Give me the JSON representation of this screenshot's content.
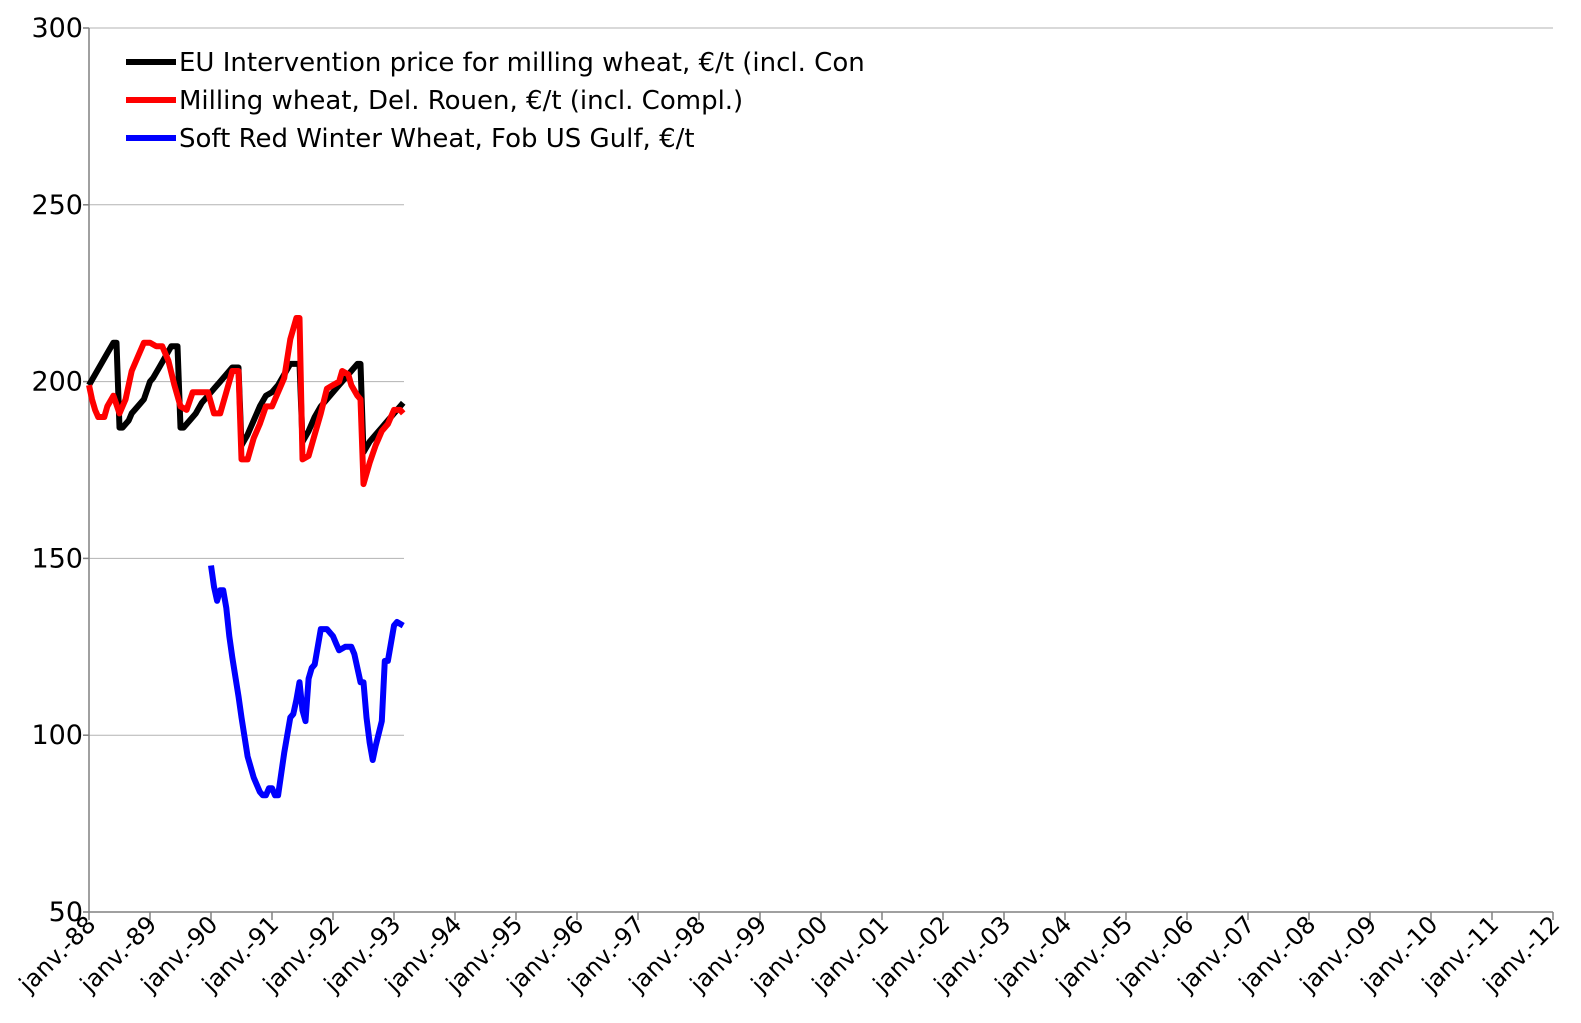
{
  "chart_data": {
    "type": "line",
    "title": "",
    "xlabel": "",
    "ylabel": "",
    "ylim": [
      50,
      300
    ],
    "yticks": [
      50,
      100,
      150,
      200,
      250,
      300
    ],
    "grid": true,
    "legend_placement": "top-left",
    "xtick_labels": [
      "janv.-88",
      "janv.-89",
      "janv.-90",
      "janv.-91",
      "janv.-92",
      "janv.-93",
      "janv.-94",
      "janv.-95",
      "janv.-96",
      "janv.-97",
      "janv.-98",
      "janv.-99",
      "janv.-00",
      "janv.-01",
      "janv.-02",
      "janv.-03",
      "janv.-04",
      "janv.-05",
      "janv.-06",
      "janv.-07",
      "janv.-08",
      "janv.-09",
      "janv.-10",
      "janv.-11",
      "janv.-12"
    ],
    "series": [
      {
        "name": "EU Intervention price for milling wheat, €/t (incl. Con",
        "color": "#000000",
        "x": [
          1988.0,
          1988.1,
          1988.2,
          1988.3,
          1988.4,
          1988.45,
          1988.5,
          1988.55,
          1988.65,
          1988.7,
          1988.8,
          1988.9,
          1989.0,
          1989.05,
          1989.15,
          1989.25,
          1989.35,
          1989.45,
          1989.5,
          1989.55,
          1989.65,
          1989.75,
          1989.85,
          1989.95,
          1990.05,
          1990.15,
          1990.25,
          1990.35,
          1990.45,
          1990.5,
          1990.6,
          1990.7,
          1990.8,
          1990.9,
          1991.0,
          1991.1,
          1991.2,
          1991.3,
          1991.45,
          1991.5,
          1991.6,
          1991.7,
          1991.8,
          1991.9,
          1992.0,
          1992.1,
          1992.2,
          1992.3,
          1992.4,
          1992.45,
          1992.5,
          1992.6,
          1992.7,
          1992.8,
          1992.9,
          1993.0,
          1993.15
        ],
        "y": [
          199,
          202,
          205,
          208,
          211,
          211,
          187,
          187,
          189,
          191,
          193,
          195,
          200,
          201,
          204,
          207,
          210,
          210,
          187,
          187,
          189,
          191,
          194,
          196,
          198,
          200,
          202,
          204,
          204,
          182,
          185,
          189,
          193,
          196,
          197,
          199,
          202,
          205,
          205,
          183,
          186,
          190,
          193,
          195,
          197,
          199,
          201,
          203,
          205,
          205,
          180,
          183,
          185,
          187,
          189,
          191,
          194
        ]
      },
      {
        "name": "Milling wheat, Del. Rouen, €/t (incl. Compl.)",
        "color": "#ff0000",
        "x": [
          1988.0,
          1988.05,
          1988.1,
          1988.15,
          1988.25,
          1988.3,
          1988.4,
          1988.5,
          1988.6,
          1988.7,
          1988.8,
          1988.9,
          1989.0,
          1989.1,
          1989.2,
          1989.3,
          1989.4,
          1989.5,
          1989.6,
          1989.7,
          1989.75,
          1989.85,
          1989.95,
          1990.05,
          1990.15,
          1990.25,
          1990.35,
          1990.45,
          1990.5,
          1990.6,
          1990.7,
          1990.8,
          1990.9,
          1991.0,
          1991.1,
          1991.2,
          1991.3,
          1991.4,
          1991.45,
          1991.5,
          1991.6,
          1991.7,
          1991.8,
          1991.9,
          1992.0,
          1992.1,
          1992.15,
          1992.25,
          1992.3,
          1992.4,
          1992.45,
          1992.5,
          1992.6,
          1992.7,
          1992.8,
          1992.9,
          1993.0,
          1993.1,
          1993.15
        ],
        "y": [
          199,
          195,
          192,
          190,
          190,
          193,
          196,
          191,
          195,
          203,
          207,
          211,
          211,
          210,
          210,
          206,
          199,
          193,
          192,
          197,
          197,
          197,
          197,
          191,
          191,
          197,
          203,
          203,
          178,
          178,
          184,
          188,
          193,
          193,
          197,
          201,
          212,
          218,
          218,
          178,
          179,
          185,
          191,
          198,
          199,
          200,
          203,
          202,
          199,
          196,
          195,
          171,
          177,
          182,
          186,
          188,
          192,
          192,
          191
        ]
      },
      {
        "name": "Soft Red Winter Wheat, Fob US Gulf, €/t",
        "color": "#0000ff",
        "x": [
          1990.0,
          1990.05,
          1990.1,
          1990.15,
          1990.2,
          1990.25,
          1990.3,
          1990.35,
          1990.45,
          1990.5,
          1990.6,
          1990.7,
          1990.8,
          1990.85,
          1990.9,
          1990.95,
          1991.0,
          1991.05,
          1991.1,
          1991.2,
          1991.3,
          1991.35,
          1991.4,
          1991.45,
          1991.5,
          1991.55,
          1991.6,
          1991.65,
          1991.7,
          1991.8,
          1991.85,
          1991.9,
          1992.0,
          1992.05,
          1992.1,
          1992.2,
          1992.3,
          1992.35,
          1992.4,
          1992.45,
          1992.5,
          1992.55,
          1992.6,
          1992.65,
          1992.7,
          1992.8,
          1992.85,
          1992.9,
          1993.0,
          1993.05,
          1993.15
        ],
        "y": [
          148,
          142,
          138,
          141,
          141,
          136,
          128,
          122,
          111,
          105,
          94,
          88,
          84,
          83,
          83,
          85,
          85,
          83,
          83,
          95,
          105,
          106,
          110,
          115,
          107,
          104,
          116,
          119,
          120,
          130,
          130,
          130,
          128,
          126,
          124,
          125,
          125,
          123,
          119,
          115,
          115,
          105,
          98,
          93,
          97,
          104,
          121,
          121,
          131,
          132,
          131
        ]
      }
    ]
  }
}
